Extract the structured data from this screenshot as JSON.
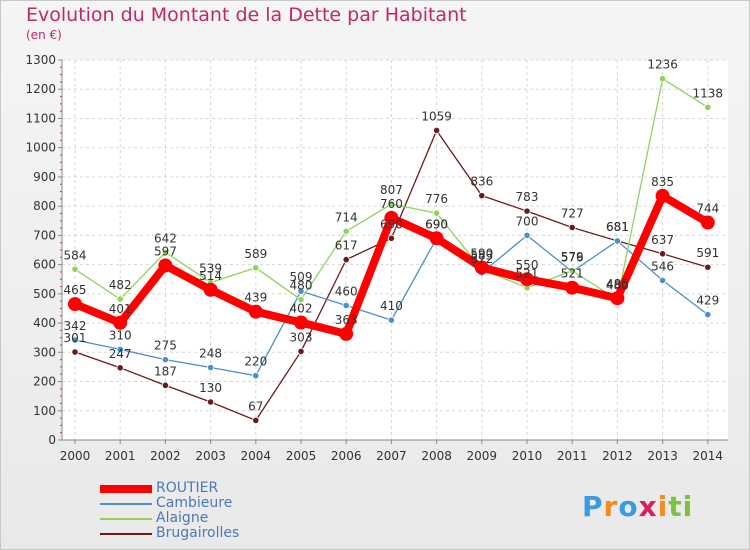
{
  "header": {
    "title": "Evolution du Montant de la Dette par Habitant",
    "subtitle": "(en €)"
  },
  "logo": {
    "letters": [
      "P",
      "r",
      "o",
      "x",
      "i",
      "t",
      "i"
    ],
    "colors": [
      "#3a9be0",
      "#f28c1e",
      "#3a9be0",
      "#d81e5b",
      "#f28c1e",
      "#7cc242",
      "#7cc242"
    ]
  },
  "chart_data": {
    "type": "line",
    "title": "Evolution du Montant de la Dette par Habitant",
    "subtitle": "(en €)",
    "xlabel": "",
    "ylabel": "",
    "categories": [
      "2000",
      "2001",
      "2002",
      "2003",
      "2004",
      "2005",
      "2006",
      "2007",
      "2008",
      "2009",
      "2010",
      "2011",
      "2012",
      "2013",
      "2014"
    ],
    "ylim": [
      0,
      1300
    ],
    "yticks": [
      0,
      100,
      200,
      300,
      400,
      500,
      600,
      700,
      800,
      900,
      1000,
      1100,
      1200,
      1300
    ],
    "grid": true,
    "legend_position": "bottom-left",
    "series": [
      {
        "name": "ROUTIER",
        "color": "#ff0000",
        "values": [
          465,
          401,
          597,
          514,
          439,
          402,
          363,
          760,
          690,
          590,
          550,
          521,
          485,
          835,
          744
        ],
        "labels": [
          "465",
          "401",
          "597",
          "514",
          "439",
          "402",
          "363",
          "760",
          "690",
          "590",
          "550",
          "521",
          "485",
          "835",
          "744"
        ]
      },
      {
        "name": "Cambieure",
        "color": "#4a90d0",
        "values": [
          342,
          310,
          275,
          248,
          220,
          509,
          460,
          410,
          690,
          572,
          700,
          576,
          681,
          546,
          429
        ],
        "labels": [
          "342",
          "310",
          "275",
          "248",
          "220",
          "509",
          "460",
          "410",
          "690",
          "572",
          "700",
          "576",
          "681",
          "546",
          "429"
        ]
      },
      {
        "name": "Alaigne",
        "color": "#8fd45a",
        "values": [
          584,
          482,
          642,
          539,
          589,
          480,
          714,
          807,
          776,
          583,
          521,
          579,
          480,
          1236,
          1138
        ],
        "labels": [
          "584",
          "482",
          "642",
          "539",
          "589",
          "480",
          "714",
          "807",
          "776",
          "583",
          "521",
          "579",
          "480",
          "1236",
          "1138"
        ]
      },
      {
        "name": "Brugairolles",
        "color": "#6e1a1a",
        "values": [
          301,
          247,
          187,
          130,
          67,
          303,
          617,
          690,
          1059,
          836,
          783,
          727,
          681,
          637,
          591
        ],
        "labels": [
          "301",
          "247",
          "187",
          "130",
          "67",
          "303",
          "617",
          "690",
          "1059",
          "836",
          "783",
          "727",
          "681",
          "637",
          "591"
        ]
      }
    ]
  }
}
